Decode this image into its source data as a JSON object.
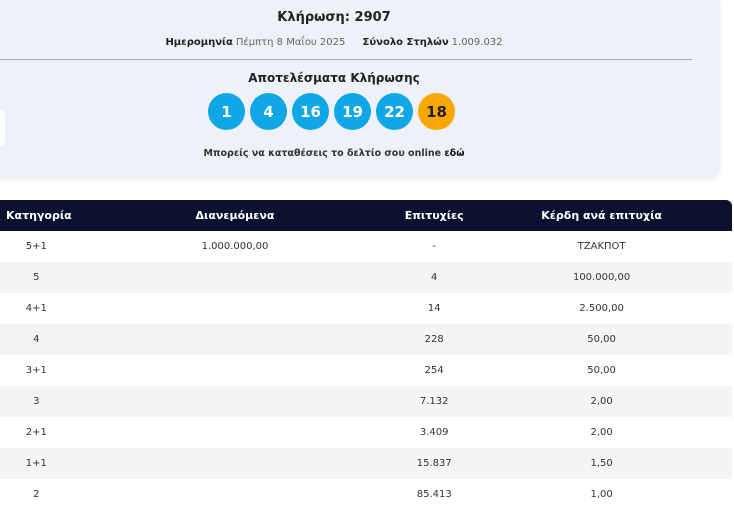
{
  "draw": {
    "title": "Κλήρωση: 2907",
    "date_label": "Ημερομηνία",
    "date_value": "Πέμπτη 8 Μαΐου 2025",
    "total_label": "Σύνολο Στηλών",
    "total_value": "1.009.032"
  },
  "results": {
    "title": "Αποτελέσματα Κλήρωσης",
    "numbers": [
      "1",
      "4",
      "16",
      "19",
      "22"
    ],
    "bonus": "18",
    "online_text": "Μπορείς να καταθέσεις το δελτίο σου online",
    "online_link": "εδώ"
  },
  "colors": {
    "ball": "#0fa7e6",
    "bonus": "#f9a703",
    "header": "#0a1230"
  },
  "table": {
    "headers": [
      "Κατηγορία",
      "Διανεμόμενα",
      "Επιτυχίες",
      "Κέρδη ανά επιτυχία"
    ],
    "rows": [
      [
        "5+1",
        "1.000.000,00",
        "-",
        "ΤΖΑΚΠΟΤ"
      ],
      [
        "5",
        "",
        "4",
        "100.000,00"
      ],
      [
        "4+1",
        "",
        "14",
        "2.500,00"
      ],
      [
        "4",
        "",
        "228",
        "50,00"
      ],
      [
        "3+1",
        "",
        "254",
        "50,00"
      ],
      [
        "3",
        "",
        "7.132",
        "2,00"
      ],
      [
        "2+1",
        "",
        "3.409",
        "2,00"
      ],
      [
        "1+1",
        "",
        "15.837",
        "1,50"
      ],
      [
        "2",
        "",
        "85.413",
        "1,00"
      ]
    ]
  }
}
